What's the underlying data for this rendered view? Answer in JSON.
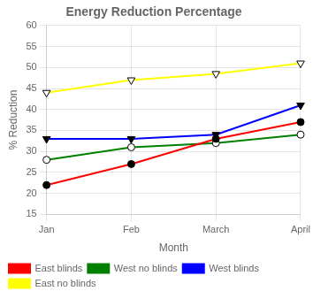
{
  "chart_data": {
    "type": "line",
    "title": "Energy Reduction Percentage",
    "xlabel": "Month",
    "ylabel": "% Reduction",
    "categories": [
      "Jan",
      "Feb",
      "March",
      "April"
    ],
    "series": [
      {
        "name": "East blinds",
        "color": "red",
        "marker": "circle",
        "values": [
          22,
          27,
          33,
          37
        ]
      },
      {
        "name": "West no blinds",
        "color": "green",
        "marker": "circle_open",
        "values": [
          28,
          31,
          32,
          34
        ]
      },
      {
        "name": "West blinds",
        "color": "blue",
        "marker": "triangle_down",
        "values": [
          33,
          33,
          34,
          41
        ]
      },
      {
        "name": "East no blinds",
        "color": "yellow",
        "marker": "triangle_down_open",
        "values": [
          44,
          47,
          48.5,
          51
        ]
      }
    ],
    "ylim": [
      15,
      60
    ],
    "yticks": [
      15,
      20,
      25,
      30,
      35,
      40,
      45,
      50,
      55,
      60
    ],
    "grid": true,
    "legend": "bottom"
  }
}
